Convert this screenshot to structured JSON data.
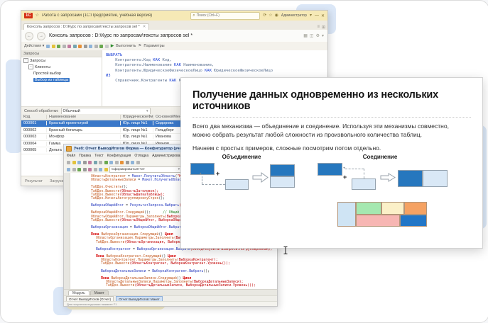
{
  "colors": {
    "dark_blue": "#2677be",
    "light_blue": "#d9e8f6",
    "titlebar_yellow": "#f6e9b6",
    "selection_blue": "#3a78c9"
  },
  "query_window": {
    "logo": "1С",
    "star_icon": "☆",
    "title": "Работа с запросами (1С:Предприятие, учебная версия)",
    "search_placeholder": "Поиск (Ctrl+F)",
    "search_icon": "⌕",
    "titlebar_icons": [
      {
        "g": "⟳",
        "n": "refresh-icon"
      },
      {
        "g": "☆",
        "n": "favorites-icon"
      },
      {
        "g": "◉",
        "n": "user-icon"
      }
    ],
    "user": "Администратор",
    "user_caret": "▾",
    "window_controls": [
      "—",
      "✕"
    ],
    "tab": "Консоль запросов : D:\\Курс по запросам\\тексты запросов sel *",
    "tab_close": "✕",
    "tabrow_icons": [
      "≡",
      "⊞"
    ],
    "nav_back": "←",
    "nav_fwd": "→",
    "header_title": "Консоль запросов : D:\\Курс по запросам\\тексты запросов sel *",
    "header_icons": [
      "▦",
      "◫",
      "⚙",
      "▾"
    ],
    "actions_label": "Действия ▾",
    "toolbar_icon_colors": [
      "#8fb4d9",
      "#e3c33c",
      "#6aa84f",
      "#b4b4b4",
      "#c27ba0",
      "#76a5af",
      "#e69138",
      "#9a9a9a",
      "#8fb4d9",
      "#b4b4b4",
      "#6aa84f",
      "#c9c9c9"
    ],
    "run_icon": "▶",
    "run_label": "Выполнить",
    "params_icon": "⚑",
    "params_label": "Параметры",
    "tree": {
      "header": "Запросы",
      "items": [
        {
          "label": "Запросы",
          "indent": 0,
          "exp": "−"
        },
        {
          "label": "Клиенты",
          "indent": 1,
          "exp": "−"
        },
        {
          "label": "Простой выбор",
          "indent": 2,
          "exp": ""
        },
        {
          "label": "Выбор из таблицы",
          "indent": 2,
          "exp": "",
          "selected": true
        }
      ]
    },
    "query_lines": [
      [
        [
          "ВЫБРАТЬ",
          "qk"
        ]
      ],
      [
        [
          "    Контрагенты.Код ",
          "qp"
        ],
        [
          "КАК",
          "qk"
        ],
        [
          " Код,",
          "qp"
        ]
      ],
      [
        [
          "    Контрагенты.Наименование ",
          "qp"
        ],
        [
          "КАК",
          "qk"
        ],
        [
          " Наименование,",
          "qp"
        ]
      ],
      [
        [
          "    Контрагенты.ЮридическоеФизическоеЛицо ",
          "qp"
        ],
        [
          "КАК",
          "qk"
        ],
        [
          " ЮридическоеФизическоеЛицо",
          "qp"
        ]
      ],
      [
        [
          "ИЗ",
          "qk"
        ]
      ],
      [
        [
          "    Справочник.Контрагенты ",
          "qp"
        ],
        [
          "КАК",
          "qk"
        ],
        [
          " Контрагенты",
          "qp"
        ]
      ]
    ],
    "processing_label": "Способ обработки:",
    "processing_value": "Обычный",
    "combo_caret": "▾",
    "grid": {
      "columns": [
        "Код",
        "Наименование",
        "ЮридическоеФизич...",
        "ОсновнойМенеджер"
      ],
      "rows": [
        [
          "000001",
          "Красный проектстрой",
          "Юр. лицо №1",
          "Сидорова"
        ],
        [
          "000002",
          "Красный богатырь",
          "Юр. лицо №1",
          "Гольдберг"
        ],
        [
          "000003",
          "Монфор",
          "Юр. лицо №1",
          "Иванова"
        ],
        [
          "000004",
          "Гамма",
          "Юр. лицо №1",
          "Иванов"
        ],
        [
          "000005",
          "Дельта",
          "Юр. лицо №1",
          "Сидоров"
        ]
      ],
      "selected_row": 0
    },
    "status_items": [
      "Результат",
      "Загрузка таблицы"
    ]
  },
  "editor_window": {
    "title": "Учеб: Отчет ВыводИтогов Форма — Конфигуратор (учебная версия) — Работа с запросами",
    "window_controls": [
      "—",
      "□",
      "✕"
    ],
    "menus": [
      "Файл",
      "Правка",
      "Текст",
      "Конфигурация",
      "Отладка",
      "Администрирование",
      "Сервис",
      "Окна",
      "Справка"
    ],
    "toolbar1_icon_colors": [
      "#b4b4b4",
      "#e3c33c",
      "#8fb4d9",
      "#9a9a9a",
      "#c27ba0",
      "#76a5af",
      "#b4b4b4",
      "#6aa84f",
      "#8fb4d9",
      "#b4b4b4",
      "#e69138",
      "#9a9a9a",
      "#8fb4d9",
      "#b4b4b4"
    ],
    "toolbar2_icon_colors": [
      "#8fb4d9",
      "#b4b4b4",
      "#6aa84f",
      "#9a9a9a",
      "#c27ba0",
      "#b4b4b4",
      "#8fb4d9",
      "#e3c33c"
    ],
    "combo_value": "СформироватьОтчет",
    "combo_caret": "▾",
    "code_lines": [
      {
        "i": 1,
        "s": [
          [
            "ОбластьКонтрагент",
            "o"
          ],
          [
            " = ",
            "p"
          ],
          [
            "Макет.ПолучитьОбласть",
            "b"
          ],
          [
            "(",
            "p"
          ],
          [
            "\"Контрагент\"",
            "r"
          ],
          [
            ");",
            "p"
          ]
        ]
      },
      {
        "i": 1,
        "s": [
          [
            "ОбластьДетальныеЗаписи",
            "o"
          ],
          [
            " = ",
            "p"
          ],
          [
            "Макет.ПолучитьОбласть",
            "b"
          ],
          [
            "(",
            "p"
          ],
          [
            "\"ДетальныеЗаписи\"",
            "r"
          ],
          [
            ");",
            "p"
          ]
        ]
      },
      {
        "i": 0,
        "s": []
      },
      {
        "i": 1,
        "s": [
          [
            "ТабДок.Очистить",
            "o"
          ],
          [
            "();",
            "p"
          ]
        ]
      },
      {
        "i": 1,
        "s": [
          [
            "ТабДок.Вывести",
            "o"
          ],
          [
            "(ОбластьЗаголовок);",
            "r"
          ]
        ]
      },
      {
        "i": 1,
        "s": [
          [
            "ТабДок.Вывести",
            "o"
          ],
          [
            "(ОбластьШапкаТаблицы);",
            "r"
          ]
        ]
      },
      {
        "i": 1,
        "s": [
          [
            "ТабДок.НачатьАвтогруппировкуСтрок",
            "o"
          ],
          [
            "();",
            "p"
          ]
        ]
      },
      {
        "i": 0,
        "s": []
      },
      {
        "i": 1,
        "s": [
          [
            "ВыборкаОбщийИтог",
            "b"
          ],
          [
            " = ",
            "p"
          ],
          [
            "РезультатЗапроса.Выбрать",
            "b"
          ],
          [
            "(ОбходРезультатаЗапроса.ПоГруппировкам);",
            "r"
          ]
        ]
      },
      {
        "i": 0,
        "s": []
      },
      {
        "i": 1,
        "s": [
          [
            "ВыборкаОбщийИтог.Следующий",
            "o"
          ],
          [
            "();",
            "p"
          ],
          [
            "      ",
            "p"
          ],
          [
            "// Общий итог",
            "c"
          ]
        ]
      },
      {
        "i": 1,
        "s": [
          [
            "ОбластьОбщийИтог.Параметры.Заполнить",
            "o"
          ],
          [
            "(ВыборкаОбщийИтог);",
            "r"
          ]
        ]
      },
      {
        "i": 1,
        "s": [
          [
            "ТабДок.Вывести",
            "o"
          ],
          [
            "(ОбластьОбщийИтог, ВыборкаОбщийИтог.Уровень());",
            "r"
          ]
        ]
      },
      {
        "i": 0,
        "s": []
      },
      {
        "i": 1,
        "s": [
          [
            "ВыборкаОрганизация",
            "b"
          ],
          [
            " = ",
            "p"
          ],
          [
            "ВыборкаОбщийИтог.Выбрать",
            "b"
          ],
          [
            "();",
            "p"
          ]
        ]
      },
      {
        "i": 0,
        "s": []
      },
      {
        "i": 1,
        "s": [
          [
            "Пока ",
            "k"
          ],
          [
            "ВыборкаОрганизация.Следующий",
            "o"
          ],
          [
            "() ",
            "p"
          ],
          [
            "Цикл",
            "k"
          ]
        ]
      },
      {
        "i": 2,
        "s": [
          [
            "ОбластьОрганизация.Параметры.Заполнить",
            "o"
          ],
          [
            "(ВыборкаОрганизация);",
            "r"
          ]
        ]
      },
      {
        "i": 2,
        "s": [
          [
            "ТабДок.Вывести",
            "o"
          ],
          [
            "(ОбластьОрганизация, ВыборкаОрганизация.Уровень());",
            "r"
          ]
        ]
      },
      {
        "i": 0,
        "s": []
      },
      {
        "i": 2,
        "s": [
          [
            "ВыборкаКонтрагент",
            "b"
          ],
          [
            " = ",
            "p"
          ],
          [
            "ВыборкаОрганизация.Выбрать",
            "b"
          ],
          [
            "(ОбходРезультатаЗапроса.ПоГруппировкам);",
            "r"
          ]
        ]
      },
      {
        "i": 0,
        "s": []
      },
      {
        "i": 2,
        "s": [
          [
            "Пока ",
            "k"
          ],
          [
            "ВыборкаКонтрагент.Следующий",
            "o"
          ],
          [
            "() ",
            "p"
          ],
          [
            "Цикл",
            "k"
          ]
        ]
      },
      {
        "i": 3,
        "s": [
          [
            "ОбластьКонтрагент.Параметры.Заполнить",
            "o"
          ],
          [
            "(ВыборкаКонтрагент);",
            "r"
          ]
        ]
      },
      {
        "i": 3,
        "s": [
          [
            "ТабДок.Вывести",
            "o"
          ],
          [
            "(ОбластьКонтрагент, ВыборкаКонтрагент.Уровень());",
            "r"
          ]
        ]
      },
      {
        "i": 0,
        "s": []
      },
      {
        "i": 3,
        "s": [
          [
            "ВыборкаДетальныеЗаписи",
            "b"
          ],
          [
            " = ",
            "p"
          ],
          [
            "ВыборкаКонтрагент.Выбрать",
            "b"
          ],
          [
            "();",
            "p"
          ]
        ]
      },
      {
        "i": 0,
        "s": []
      },
      {
        "i": 3,
        "s": [
          [
            "Пока ",
            "k"
          ],
          [
            "ВыборкаДетальныеЗаписи.Следующий",
            "o"
          ],
          [
            "() ",
            "p"
          ],
          [
            "Цикл",
            "k"
          ]
        ]
      },
      {
        "i": 4,
        "s": [
          [
            "ОбластьДетальныеЗаписи.Параметры.Заполнить",
            "o"
          ],
          [
            "(ВыборкаДетальныеЗаписи);",
            "r"
          ]
        ]
      },
      {
        "i": 4,
        "s": [
          [
            "ТабДок.Вывести",
            "o"
          ],
          [
            "(ОбластьДетальныеЗаписи, ВыборкаДетальныеЗаписи.Уровень());",
            "r"
          ]
        ]
      }
    ],
    "bottom_tabs": [
      {
        "label": "Модуль",
        "active": true
      },
      {
        "label": "Макет",
        "active": false
      }
    ],
    "taskbar": [
      {
        "label": "Отчет ВыводИтогов (Отчет)",
        "active": false
      },
      {
        "label": "Отчет ВыводИтогов: Макет",
        "active": true
      }
    ],
    "status": "Для получения подсказки нажмите F1"
  },
  "slide": {
    "title": "Получение данных одновременно из нескольких источников",
    "para1": "Всего два механизма — объединение и соединение. Используя эти механизмы совместно, можно собрать результат любой сложности из произвольного количества таблиц.",
    "para2": "Начнем с простых примеров, сложные посмотрим потом отдельно.",
    "union_label": "Объединение",
    "join_label": "Соединение",
    "plus": "+",
    "up_arrow": "▴",
    "left_arrow": "◂",
    "colors": {
      "dark_blue": "#2677be",
      "light_blue": "#d9e8f6"
    },
    "mosaic_cells": [
      {
        "name": "mosaic-cell-lightblue",
        "color": "#cfe4f4"
      },
      {
        "name": "mosaic-cell-green",
        "color": "#a5e8b0"
      },
      {
        "name": "mosaic-cell-cream",
        "color": "#fbf0c8"
      },
      {
        "name": "mosaic-cell-orange",
        "color": "#f5a263"
      },
      {
        "name": "mosaic-cell-pink",
        "color": "#f7b6b3"
      },
      {
        "name": "mosaic-cell-blue",
        "color": "#2176c7"
      }
    ]
  }
}
